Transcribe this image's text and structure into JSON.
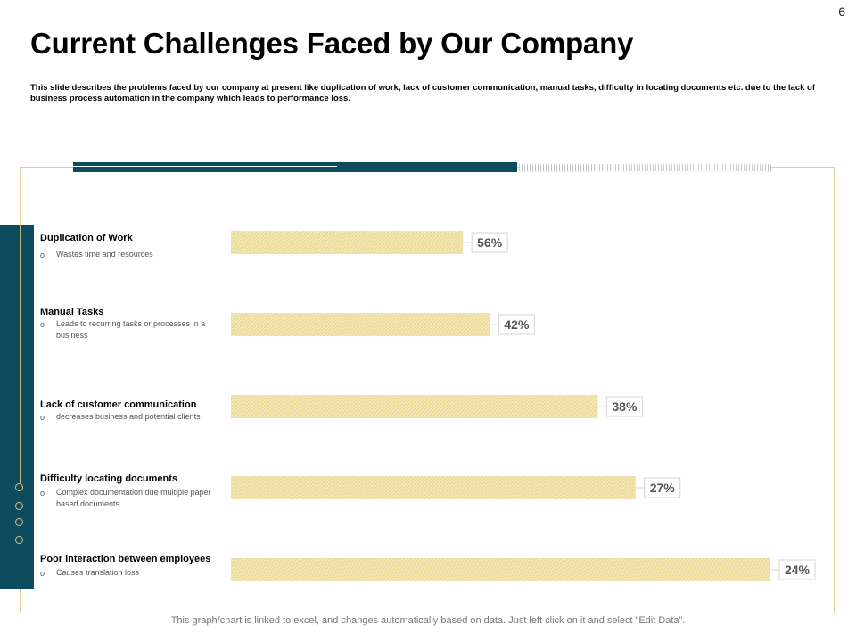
{
  "page_number": "6",
  "title": "Current Challenges Faced by Our Company",
  "description": "This slide describes the problems faced by our company at present like duplication of work, lack of customer communication, manual tasks, difficulty in locating documents etc. due to the lack of business process automation in the company which leads to performance loss.",
  "footer": "This graph/chart is linked to excel, and changes automatically based on data. Just left click on it and select “Edit Data”.",
  "colors": {
    "accent": "#0b4d5c",
    "bar_fill": "#f3e7b4",
    "bar_hatch": "#e6d48e",
    "frame": "#e3cf96"
  },
  "categories": [
    {
      "title": "Duplication  of Work",
      "bullet": "o",
      "sub": "Wastes time and resources"
    },
    {
      "title": "Manual Tasks",
      "bullet": "o",
      "sub": "Leads to recurring tasks or processes in a business"
    },
    {
      "title": "Lack of customer communication",
      "bullet": "o",
      "sub": "decreases business and potential clients"
    },
    {
      "title": "Difficulty  locating documents",
      "bullet": "o",
      "sub": "Complex documentation due multiple paper based documents"
    },
    {
      "title": "Poor interaction between employees",
      "bullet": "o",
      "sub": "Causes translation loss"
    }
  ],
  "chart_data": {
    "type": "bar",
    "orientation": "horizontal",
    "categories": [
      "Duplication of Work",
      "Manual Tasks",
      "Lack of customer communication",
      "Difficulty locating documents",
      "Poor interaction between employees"
    ],
    "values": [
      56,
      42,
      38,
      27,
      24
    ],
    "bar_lengths_relative": [
      0.43,
      0.48,
      0.68,
      0.75,
      1.0
    ],
    "labels": [
      "56%",
      "42%",
      "38%",
      "27%",
      "24%"
    ],
    "title": "",
    "xlabel": "",
    "ylabel": "",
    "grid": false,
    "legend": "none"
  }
}
